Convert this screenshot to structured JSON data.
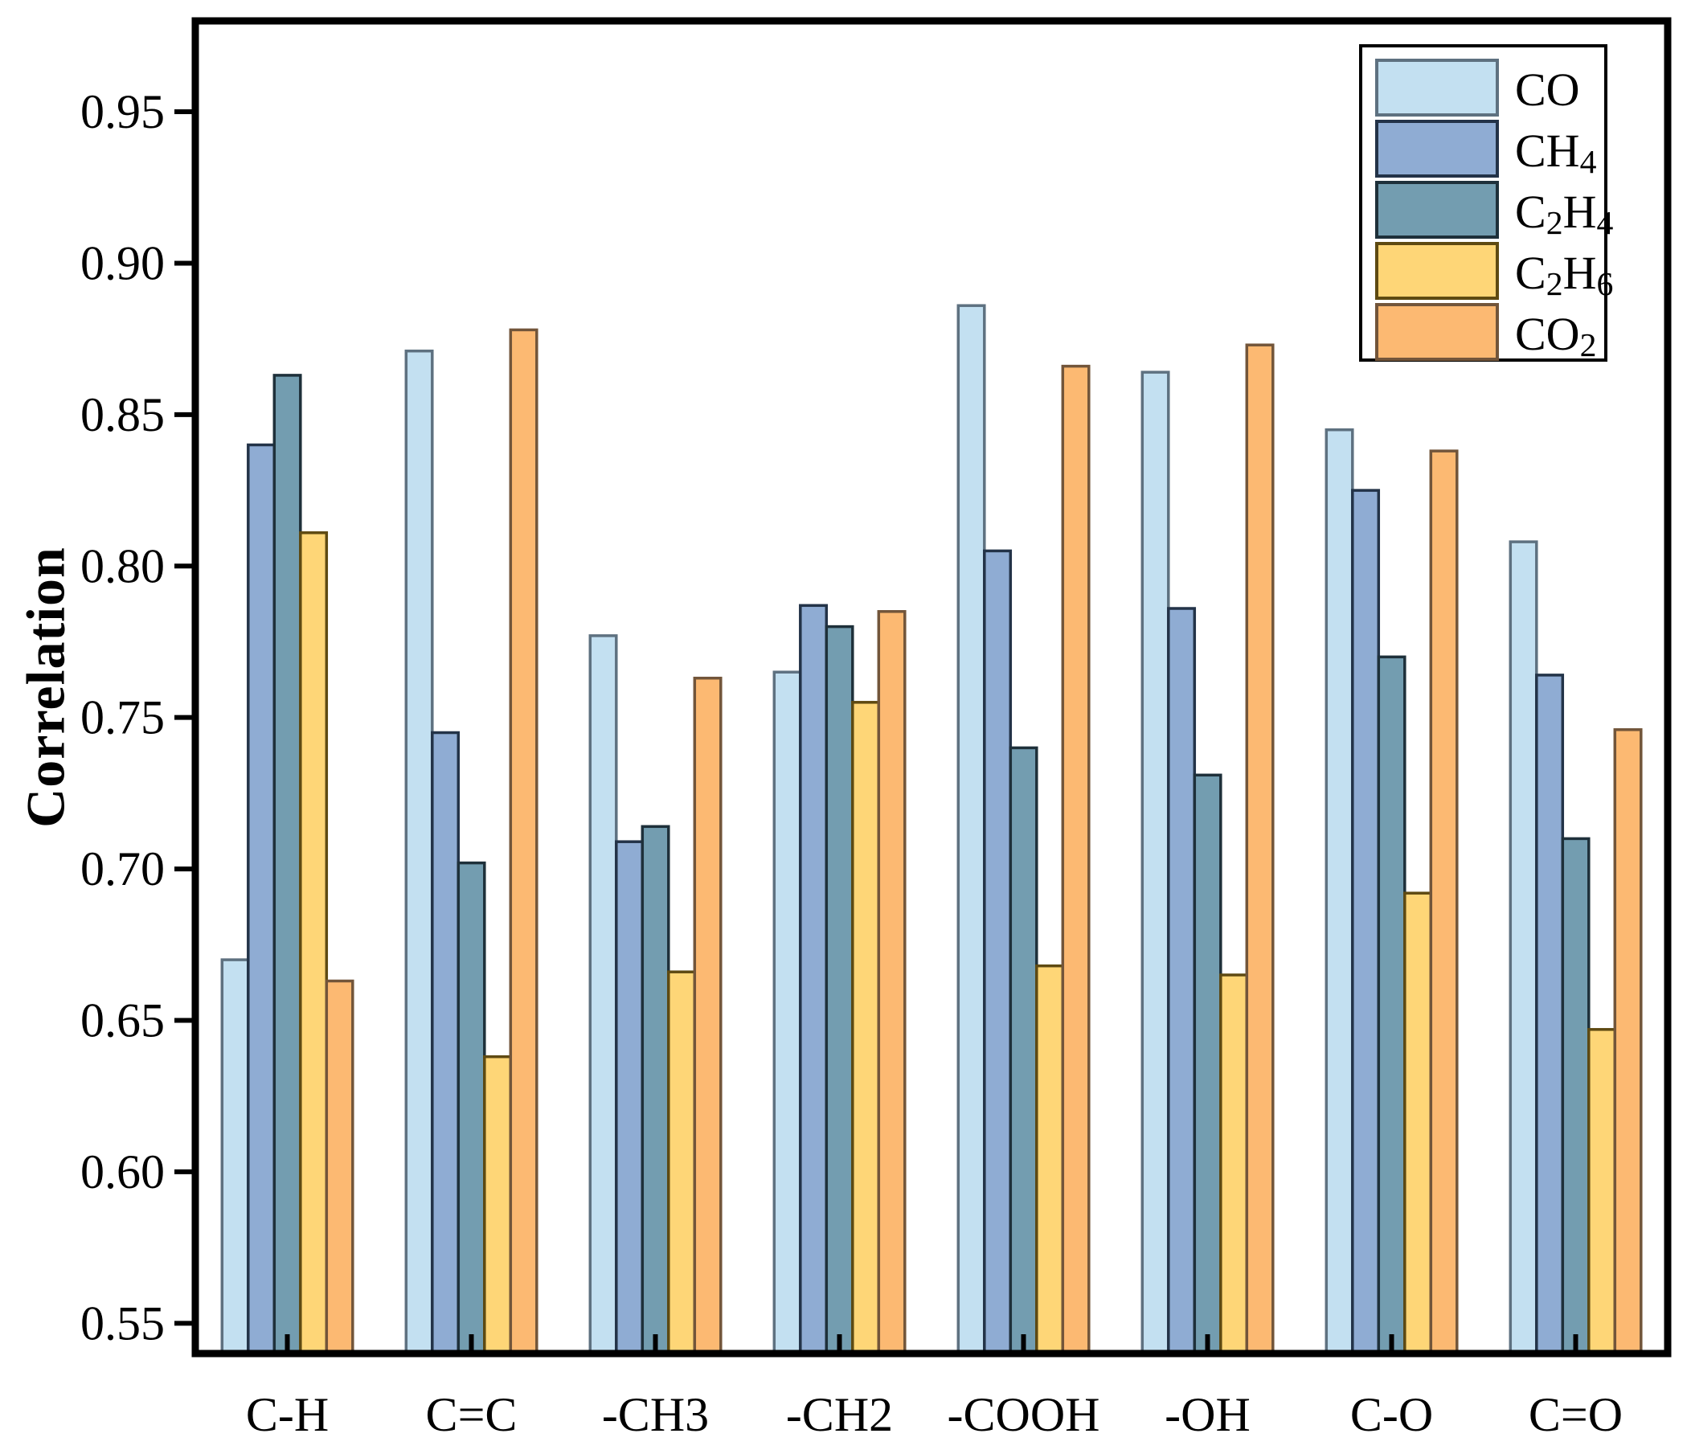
{
  "chart_data": {
    "type": "bar",
    "title": "",
    "xlabel": "",
    "ylabel": "Correlation",
    "grid": false,
    "legend_position": "upper right",
    "categories": [
      "C-H",
      "C=C",
      "-CH3",
      "-CH2",
      "-COOH",
      "-OH",
      "C-O",
      "C=O"
    ],
    "series": [
      {
        "name": "CO",
        "label_segments": [
          [
            "CO",
            0
          ]
        ],
        "fill": "#C3E0F1",
        "edge": "#5E7180",
        "values": [
          0.67,
          0.871,
          0.777,
          0.765,
          0.886,
          0.864,
          0.845,
          0.808
        ]
      },
      {
        "name": "CH4",
        "label_segments": [
          [
            "CH",
            0
          ],
          [
            "4",
            1
          ]
        ],
        "fill": "#8FACD3",
        "edge": "#233348",
        "values": [
          0.84,
          0.745,
          0.709,
          0.787,
          0.805,
          0.786,
          0.825,
          0.764
        ]
      },
      {
        "name": "C2H4",
        "label_segments": [
          [
            "C",
            0
          ],
          [
            "2",
            1
          ],
          [
            "H",
            0
          ],
          [
            "4",
            1
          ]
        ],
        "fill": "#739DB0",
        "edge": "#1E303A",
        "values": [
          0.863,
          0.702,
          0.714,
          0.78,
          0.74,
          0.731,
          0.77,
          0.71
        ]
      },
      {
        "name": "C2H6",
        "label_segments": [
          [
            "C",
            0
          ],
          [
            "2",
            1
          ],
          [
            "H",
            0
          ],
          [
            "6",
            1
          ]
        ],
        "fill": "#FED677",
        "edge": "#5E4A12",
        "values": [
          0.811,
          0.638,
          0.666,
          0.755,
          0.668,
          0.665,
          0.692,
          0.647
        ]
      },
      {
        "name": "CO2",
        "label_segments": [
          [
            "CO",
            0
          ],
          [
            "2",
            1
          ]
        ],
        "fill": "#FCB972",
        "edge": "#72553A",
        "values": [
          0.663,
          0.878,
          0.763,
          0.785,
          0.866,
          0.873,
          0.838,
          0.746
        ]
      }
    ],
    "ylim": [
      0.54,
      0.98
    ],
    "ytick_labels": [
      "0.95",
      "0.90",
      "0.85",
      "0.80",
      "0.75",
      "0.70",
      "0.65",
      "0.60",
      "0.55"
    ],
    "ytick_values": [
      0.95,
      0.9,
      0.85,
      0.8,
      0.75,
      0.7,
      0.65,
      0.6,
      0.55
    ],
    "axis_color": "#000000",
    "background_color": "#FFFFFF"
  }
}
